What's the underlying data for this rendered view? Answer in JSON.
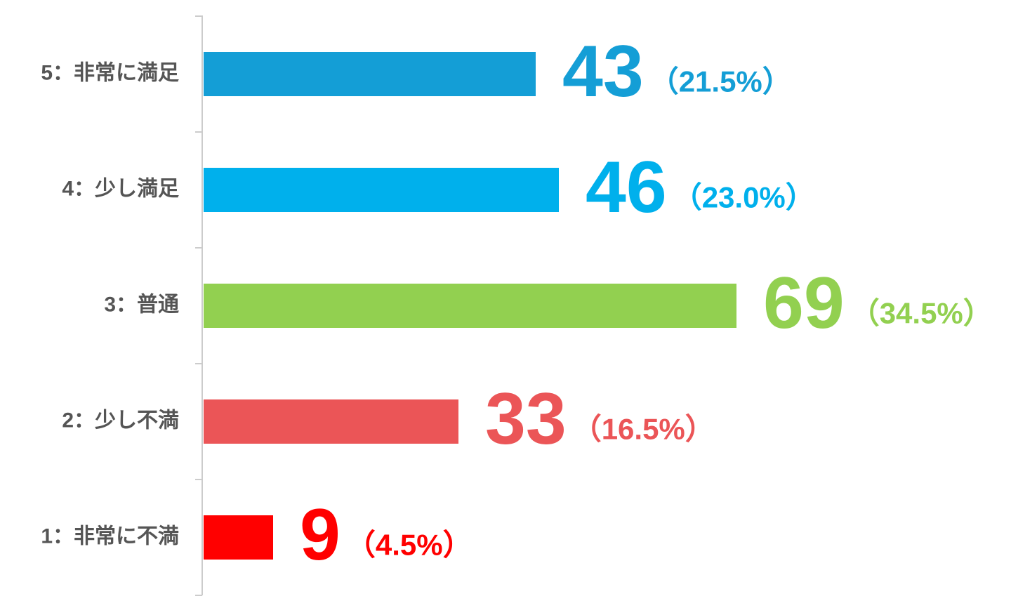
{
  "chart_data": {
    "type": "bar",
    "orientation": "horizontal",
    "categories": [
      "5：非常に満足",
      "4：少し満足",
      "3：普通",
      "2：少し不満",
      "1：非常に不満"
    ],
    "values": [
      43,
      46,
      69,
      33,
      9
    ],
    "percent_labels": [
      "（21.5%）",
      "（23.0%）",
      "（34.5%）",
      "（16.5%）",
      "（4.5%）"
    ],
    "colors": [
      "#149ed6",
      "#00b0ec",
      "#92d050",
      "#eb5557",
      "#ff0000"
    ],
    "xlim": [
      0,
      100
    ]
  }
}
